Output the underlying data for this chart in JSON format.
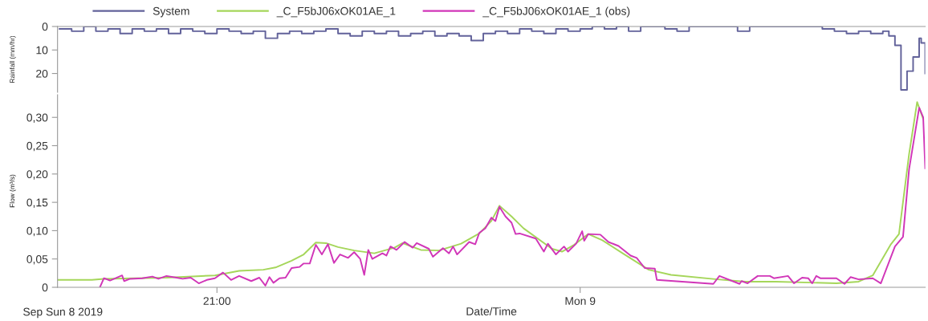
{
  "chart_data": [
    {
      "type": "step",
      "ylabel": "Rainfall (mm/hr)",
      "xlim": [
        "2019-09-08T19:41",
        "2019-09-09T02:51"
      ],
      "ylim": [
        28,
        0
      ],
      "yticks": [
        0,
        10,
        20
      ],
      "tick_labels": "y",
      "legend": "top",
      "grid": false,
      "series": [
        {
          "name": "System",
          "color": "#62629a",
          "x": [
            "2019-09-08T19:42",
            "2019-09-08T19:48",
            "2019-09-08T19:54",
            "2019-09-08T20:00",
            "2019-09-08T20:06",
            "2019-09-08T20:12",
            "2019-09-08T20:18",
            "2019-09-08T20:24",
            "2019-09-08T20:30",
            "2019-09-08T20:36",
            "2019-09-08T20:42",
            "2019-09-08T20:48",
            "2019-09-08T20:54",
            "2019-09-08T21:00",
            "2019-09-08T21:06",
            "2019-09-08T21:12",
            "2019-09-08T21:18",
            "2019-09-08T21:24",
            "2019-09-08T21:30",
            "2019-09-08T21:36",
            "2019-09-08T21:42",
            "2019-09-08T21:48",
            "2019-09-08T21:54",
            "2019-09-08T22:00",
            "2019-09-08T22:06",
            "2019-09-08T22:12",
            "2019-09-08T22:18",
            "2019-09-08T22:24",
            "2019-09-08T22:30",
            "2019-09-08T22:36",
            "2019-09-08T22:42",
            "2019-09-08T22:48",
            "2019-09-08T22:54",
            "2019-09-08T23:00",
            "2019-09-08T23:06",
            "2019-09-08T23:12",
            "2019-09-08T23:18",
            "2019-09-08T23:24",
            "2019-09-08T23:30",
            "2019-09-08T23:36",
            "2019-09-08T23:42",
            "2019-09-08T23:48",
            "2019-09-08T23:54",
            "2019-09-09T00:00",
            "2019-09-09T00:06",
            "2019-09-09T00:12",
            "2019-09-09T00:18",
            "2019-09-09T00:24",
            "2019-09-09T00:30",
            "2019-09-09T00:36",
            "2019-09-09T00:42",
            "2019-09-09T00:48",
            "2019-09-09T00:54",
            "2019-09-09T01:00",
            "2019-09-09T01:06",
            "2019-09-09T01:12",
            "2019-09-09T01:18",
            "2019-09-09T01:24",
            "2019-09-09T01:30",
            "2019-09-09T01:36",
            "2019-09-09T01:42",
            "2019-09-09T01:48",
            "2019-09-09T01:54",
            "2019-09-09T02:00",
            "2019-09-09T02:06",
            "2019-09-09T02:12",
            "2019-09-09T02:18",
            "2019-09-09T02:24",
            "2019-09-09T02:30",
            "2019-09-09T02:33",
            "2019-09-09T02:36",
            "2019-09-09T02:39",
            "2019-09-09T02:42",
            "2019-09-09T02:45",
            "2019-09-09T02:48",
            "2019-09-09T02:49",
            "2019-09-09T02:51"
          ],
          "values": [
            1,
            2,
            0,
            2,
            1,
            3,
            1,
            2,
            1,
            3,
            1,
            2,
            3,
            1,
            2,
            3,
            2,
            5,
            3,
            2,
            3,
            2,
            1,
            3,
            4,
            2,
            3,
            2,
            4,
            3,
            2,
            4,
            3,
            4,
            6,
            3,
            2,
            3,
            1,
            2,
            3,
            1,
            2,
            1,
            0,
            1,
            0,
            2,
            0,
            0,
            1,
            2,
            0,
            0,
            0,
            0,
            2,
            0,
            0,
            0,
            0,
            0,
            0,
            1,
            2,
            3,
            2,
            3,
            2,
            4,
            8,
            27,
            19,
            13,
            5,
            7,
            20
          ]
        }
      ]
    },
    {
      "type": "line",
      "xlabel": "Date/Time",
      "ylabel": "Flow (m³/s)",
      "xlim": [
        "2019-09-08T19:41",
        "2019-09-09T02:51"
      ],
      "ylim": [
        0,
        0.34
      ],
      "xticks": [
        {
          "value": "2019-09-08T21:00",
          "label": "21:00"
        },
        {
          "value": "2019-09-09T00:00",
          "label": "Mon 9"
        }
      ],
      "yticks": [
        0,
        {
          "value": 0.05,
          "label": "0,05"
        },
        {
          "value": 0.1,
          "label": "0,10"
        },
        {
          "value": 0.15,
          "label": "0,15"
        },
        {
          "value": 0.2,
          "label": "0,20"
        },
        {
          "value": 0.25,
          "label": "0,25"
        },
        {
          "value": 0.3,
          "label": "0,30"
        }
      ],
      "legend": "top",
      "grid": false,
      "annotations": [
        "Sep Sun 8 2019"
      ],
      "series": [
        {
          "name": "_C_F5bJ06xOK01AE_1",
          "color": "#a5d65a",
          "x": [
            "2019-09-08T19:41",
            "2019-09-08T19:58",
            "2019-09-08T20:04",
            "2019-09-08T20:35",
            "2019-09-08T20:59",
            "2019-09-08T21:11",
            "2019-09-08T21:23",
            "2019-09-08T21:29",
            "2019-09-08T21:37",
            "2019-09-08T21:43",
            "2019-09-08T21:49",
            "2019-09-08T21:54",
            "2019-09-08T22:00",
            "2019-09-08T22:08",
            "2019-09-08T22:18",
            "2019-09-08T22:28",
            "2019-09-08T22:32",
            "2019-09-08T22:41",
            "2019-09-08T22:50",
            "2019-09-08T23:01",
            "2019-09-08T23:10",
            "2019-09-08T23:16",
            "2019-09-08T23:20",
            "2019-09-08T23:26",
            "2019-09-08T23:32",
            "2019-09-08T23:46",
            "2019-09-08T23:51",
            "2019-09-08T23:57",
            "2019-09-09T00:04",
            "2019-09-09T00:11",
            "2019-09-09T00:22",
            "2019-09-09T00:34",
            "2019-09-09T00:45",
            "2019-09-09T01:08",
            "2019-09-09T01:22",
            "2019-09-09T01:37",
            "2019-09-09T02:07",
            "2019-09-09T02:18",
            "2019-09-09T02:25",
            "2019-09-09T02:34",
            "2019-09-09T02:38",
            "2019-09-09T02:43",
            "2019-09-09T02:47",
            "2019-09-09T02:50"
          ],
          "values": [
            0.013,
            0.013,
            0.015,
            0.017,
            0.021,
            0.029,
            0.031,
            0.035,
            0.047,
            0.058,
            0.079,
            0.078,
            0.071,
            0.065,
            0.06,
            0.07,
            0.078,
            0.066,
            0.065,
            0.077,
            0.095,
            0.117,
            0.144,
            0.125,
            0.104,
            0.068,
            0.063,
            0.075,
            0.094,
            0.083,
            0.058,
            0.031,
            0.022,
            0.014,
            0.01,
            0.01,
            0.007,
            0.01,
            0.021,
            0.076,
            0.094,
            0.235,
            0.327,
            0.297
          ]
        },
        {
          "name": "_C_F5bJ06xOK01AE_1 (obs)",
          "color": "#d136b8",
          "x": [
            "2019-09-08T20:02",
            "2019-09-08T20:04",
            "2019-09-08T20:07",
            "2019-09-08T20:13",
            "2019-09-08T20:14",
            "2019-09-08T20:17",
            "2019-09-08T20:23",
            "2019-09-08T20:28",
            "2019-09-08T20:31",
            "2019-09-08T20:35",
            "2019-09-08T20:40",
            "2019-09-08T20:43",
            "2019-09-08T20:47",
            "2019-09-08T20:51",
            "2019-09-08T20:55",
            "2019-09-08T20:59",
            "2019-09-08T21:03",
            "2019-09-08T21:07",
            "2019-09-08T21:11",
            "2019-09-08T21:17",
            "2019-09-08T21:21",
            "2019-09-08T21:24",
            "2019-09-08T21:26",
            "2019-09-08T21:28",
            "2019-09-08T21:31",
            "2019-09-08T21:34",
            "2019-09-08T21:37",
            "2019-09-08T21:41",
            "2019-09-08T21:43",
            "2019-09-08T21:46",
            "2019-09-08T21:49",
            "2019-09-08T21:52",
            "2019-09-08T21:55",
            "2019-09-08T21:58",
            "2019-09-08T22:01",
            "2019-09-08T22:05",
            "2019-09-08T22:08",
            "2019-09-08T22:11",
            "2019-09-08T22:13",
            "2019-09-08T22:15",
            "2019-09-08T22:17",
            "2019-09-08T22:22",
            "2019-09-08T22:24",
            "2019-09-08T22:26",
            "2019-09-08T22:29",
            "2019-09-08T22:33",
            "2019-09-08T22:37",
            "2019-09-08T22:39",
            "2019-09-08T22:45",
            "2019-09-08T22:47",
            "2019-09-08T22:52",
            "2019-09-08T22:55",
            "2019-09-08T22:57",
            "2019-09-08T22:59",
            "2019-09-08T23:05",
            "2019-09-08T23:08",
            "2019-09-08T23:10",
            "2019-09-08T23:13",
            "2019-09-08T23:16",
            "2019-09-08T23:18",
            "2019-09-08T23:20",
            "2019-09-08T23:23",
            "2019-09-08T23:26",
            "2019-09-08T23:28",
            "2019-09-08T23:30",
            "2019-09-08T23:38",
            "2019-09-08T23:42",
            "2019-09-08T23:44",
            "2019-09-08T23:48",
            "2019-09-08T23:52",
            "2019-09-08T23:54",
            "2019-09-08T23:58",
            "2019-09-09T00:01",
            "2019-09-09T00:02",
            "2019-09-09T00:04",
            "2019-09-09T00:10",
            "2019-09-09T00:14",
            "2019-09-09T00:19",
            "2019-09-09T00:25",
            "2019-09-09T00:28",
            "2019-09-09T00:32",
            "2019-09-09T00:37",
            "2019-09-09T00:38",
            "2019-09-09T01:06",
            "2019-09-09T01:09",
            "2019-09-09T01:19",
            "2019-09-09T01:20",
            "2019-09-09T01:23",
            "2019-09-09T01:28",
            "2019-09-09T01:34",
            "2019-09-09T01:36",
            "2019-09-09T01:43",
            "2019-09-09T01:46",
            "2019-09-09T01:50",
            "2019-09-09T01:53",
            "2019-09-09T01:55",
            "2019-09-09T01:57",
            "2019-09-09T01:59",
            "2019-09-09T02:07",
            "2019-09-09T02:11",
            "2019-09-09T02:14",
            "2019-09-09T02:18",
            "2019-09-09T02:25",
            "2019-09-09T02:29",
            "2019-09-09T02:36",
            "2019-09-09T02:40",
            "2019-09-09T02:43",
            "2019-09-09T02:48",
            "2019-09-09T02:50",
            "2019-09-09T02:51"
          ],
          "values": [
            0,
            0.016,
            0.012,
            0.021,
            0.011,
            0.015,
            0.016,
            0.019,
            0.015,
            0.02,
            0.017,
            0.015,
            0.017,
            0.007,
            0.013,
            0.016,
            0.026,
            0.013,
            0.02,
            0.011,
            0.017,
            0.003,
            0.018,
            0.008,
            0.016,
            0.017,
            0.034,
            0.036,
            0.042,
            0.042,
            0.075,
            0.058,
            0.076,
            0.043,
            0.058,
            0.052,
            0.062,
            0.05,
            0.022,
            0.066,
            0.05,
            0.06,
            0.056,
            0.072,
            0.066,
            0.08,
            0.07,
            0.078,
            0.068,
            0.054,
            0.069,
            0.06,
            0.072,
            0.058,
            0.08,
            0.076,
            0.096,
            0.104,
            0.123,
            0.117,
            0.142,
            0.125,
            0.114,
            0.094,
            0.095,
            0.086,
            0.063,
            0.077,
            0.058,
            0.072,
            0.063,
            0.077,
            0.099,
            0.082,
            0.094,
            0.093,
            0.08,
            0.073,
            0.056,
            0.052,
            0.034,
            0.033,
            0.013,
            0.006,
            0.02,
            0.006,
            0.011,
            0.007,
            0.02,
            0.02,
            0.016,
            0.02,
            0.007,
            0.017,
            0.016,
            0.007,
            0.02,
            0.016,
            0.016,
            0.006,
            0.018,
            0.014,
            0.016,
            0.007,
            0.072,
            0.089,
            0.208,
            0.317,
            0.3,
            0.21
          ]
        }
      ]
    }
  ]
}
